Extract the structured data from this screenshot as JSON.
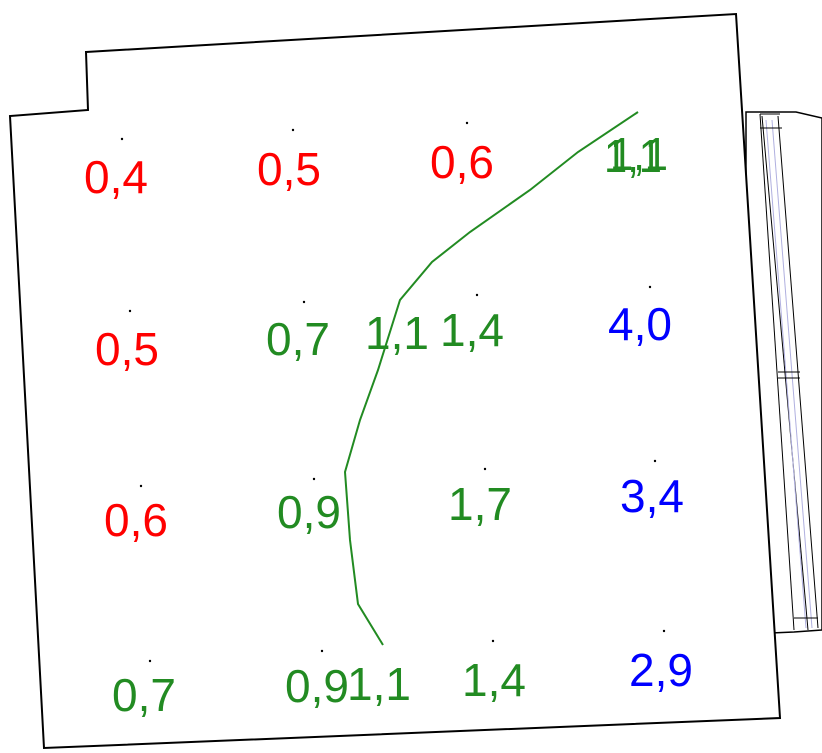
{
  "colors": {
    "low": "#ff0000",
    "mid": "#228b22",
    "high": "#0000ff",
    "outline": "#000000",
    "window_line": "#b0b0e0"
  },
  "labels": [
    {
      "text": "0,4",
      "color": "low"
    },
    {
      "text": "0,5",
      "color": "low"
    },
    {
      "text": "0,6",
      "color": "low"
    },
    {
      "text": "1,1",
      "color": "mid"
    },
    {
      "text": "1,1",
      "color": "mid"
    },
    {
      "text": "0,5",
      "color": "low"
    },
    {
      "text": "0,7",
      "color": "mid"
    },
    {
      "text": "1,1",
      "color": "mid"
    },
    {
      "text": "1,4",
      "color": "mid"
    },
    {
      "text": "4,0",
      "color": "high"
    },
    {
      "text": "0,6",
      "color": "low"
    },
    {
      "text": "0,9",
      "color": "mid"
    },
    {
      "text": "1,7",
      "color": "mid"
    },
    {
      "text": "3,4",
      "color": "high"
    },
    {
      "text": "0,7",
      "color": "mid"
    },
    {
      "text": "0,9",
      "color": "mid"
    },
    {
      "text": "1,1",
      "color": "mid"
    },
    {
      "text": "1,4",
      "color": "mid"
    },
    {
      "text": "2,9",
      "color": "high"
    }
  ],
  "contour_color": "mid"
}
